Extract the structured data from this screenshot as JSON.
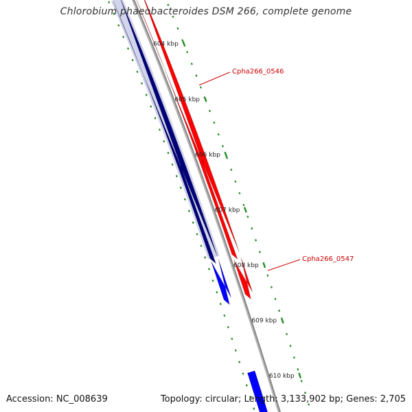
{
  "title": "Chlorobium phaeobacteroides DSM 266, complete genome",
  "accession": "Accession: NC_008639",
  "summary": "Topology: circular; Length: 3,133,902 bp; Genes: 2,705",
  "scale_labels": [
    "604 kbp",
    "605 kbp",
    "606 kbp",
    "607 kbp",
    "608 kbp",
    "609 kbp",
    "610 kbp"
  ],
  "gene_labels": [
    "Cpha266_0546",
    "Cpha266_0547"
  ],
  "colors": {
    "backbone": "#8a8a8a",
    "forward_dark": "#00007a",
    "forward": "#0000ff",
    "reverse": "#ff0000",
    "scale": "#228b22",
    "gene_label": "#cc0000"
  }
}
